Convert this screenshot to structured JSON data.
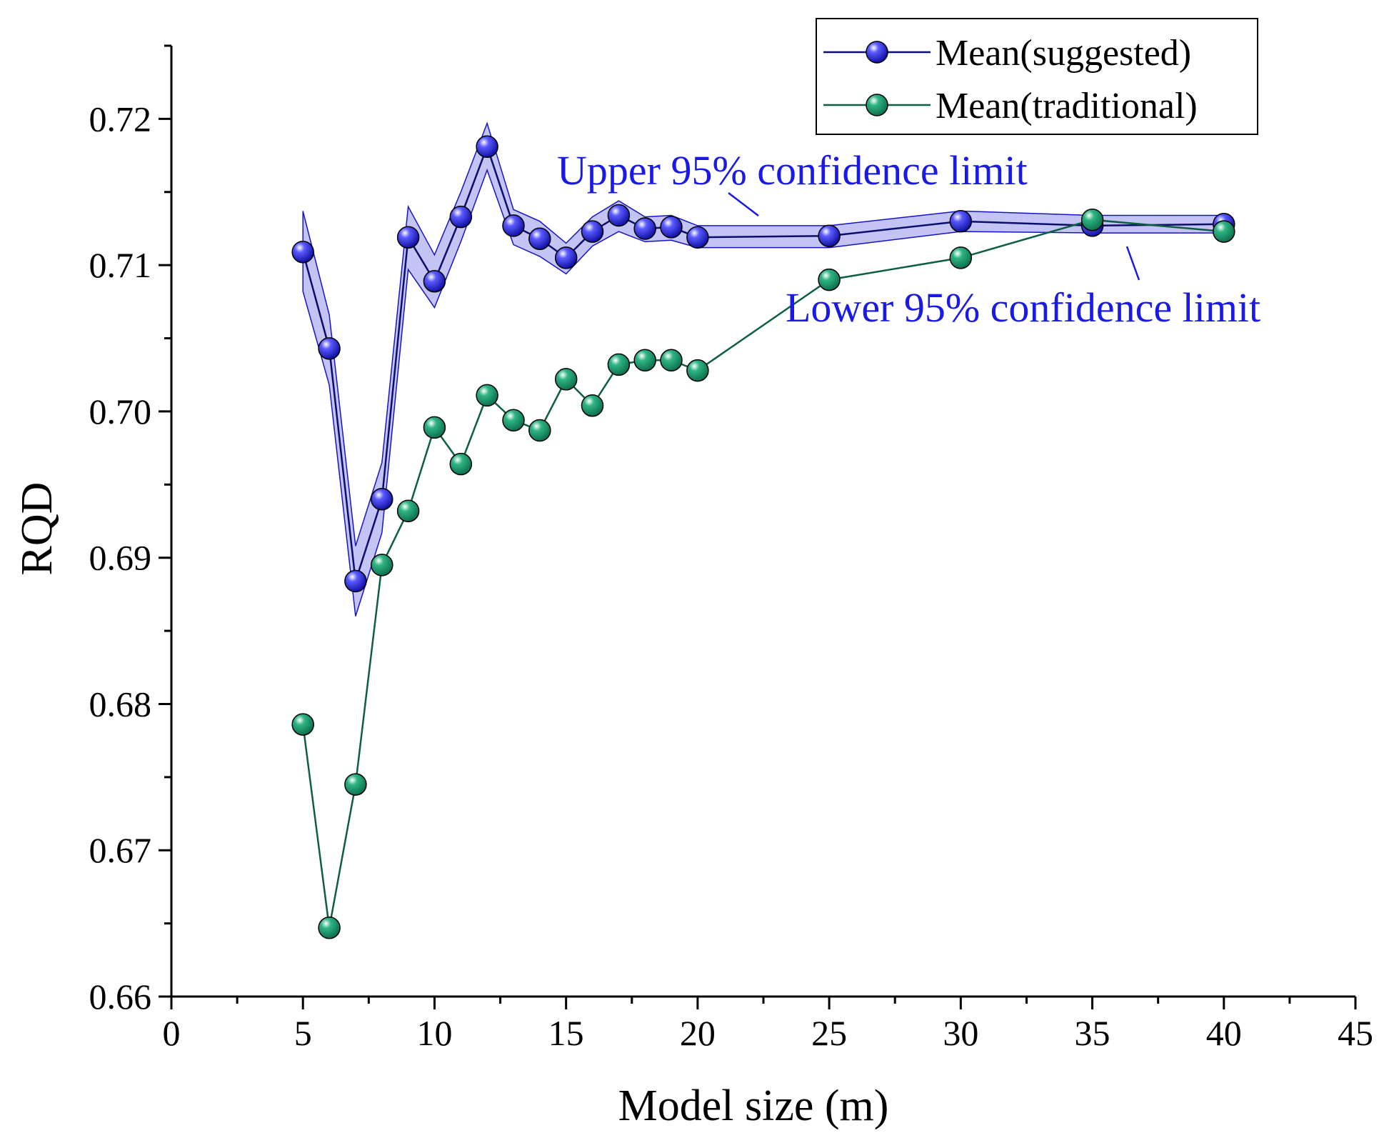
{
  "colors": {
    "suggested": "#1515c8",
    "suggested_line": "#0d0d6b",
    "band_fill": "#b8b8f2",
    "traditional": "#138a5e",
    "traditional_line": "#0e5e40",
    "annotation": "#1a1ae6",
    "axis": "#000000"
  },
  "chart_data": {
    "type": "line",
    "xlabel": "Model size (m)",
    "ylabel": "RQD",
    "xlim": [
      0,
      45
    ],
    "ylim": [
      0.66,
      0.725
    ],
    "x_ticks": [
      "0",
      "5",
      "10",
      "15",
      "20",
      "25",
      "30",
      "35",
      "40",
      "45"
    ],
    "y_ticks": [
      "0.66",
      "0.67",
      "0.68",
      "0.69",
      "0.70",
      "0.71",
      "0.72"
    ],
    "x": [
      5,
      6,
      7,
      8,
      9,
      10,
      11,
      12,
      13,
      14,
      15,
      16,
      17,
      18,
      19,
      20,
      25,
      30,
      35,
      40
    ],
    "series": [
      {
        "name": "Mean(suggested)",
        "values": [
          0.7109,
          0.7043,
          0.6884,
          0.694,
          0.7119,
          0.7089,
          0.7133,
          0.7181,
          0.7127,
          0.7118,
          0.7105,
          0.7123,
          0.7134,
          0.7125,
          0.7126,
          0.7119,
          0.712,
          0.713,
          0.7127,
          0.7128
        ],
        "upper_95": [
          0.7137,
          0.7066,
          0.6908,
          0.6965,
          0.714,
          0.7107,
          0.715,
          0.7197,
          0.7138,
          0.713,
          0.7115,
          0.7133,
          0.7144,
          0.7133,
          0.7134,
          0.7127,
          0.7127,
          0.7137,
          0.7134,
          0.7134
        ],
        "lower_95": [
          0.7082,
          0.7018,
          0.686,
          0.6917,
          0.7097,
          0.7071,
          0.7116,
          0.7165,
          0.7114,
          0.7106,
          0.7094,
          0.7113,
          0.7123,
          0.7116,
          0.7117,
          0.7112,
          0.7112,
          0.7123,
          0.7122,
          0.7122
        ]
      },
      {
        "name": "Mean(traditional)",
        "values": [
          0.6786,
          0.6647,
          0.6745,
          0.6895,
          0.6932,
          0.6989,
          0.6964,
          0.7011,
          0.6994,
          0.6987,
          0.7022,
          0.7004,
          0.7032,
          0.7035,
          0.7035,
          0.7028,
          0.709,
          0.7105,
          0.7131,
          0.7123
        ]
      }
    ],
    "legend": [
      "Mean(suggested)",
      "Mean(traditional)"
    ],
    "legend_position": "top-right",
    "annotations": [
      "Upper 95% confidence limit",
      "Lower 95% confidence limit"
    ]
  }
}
